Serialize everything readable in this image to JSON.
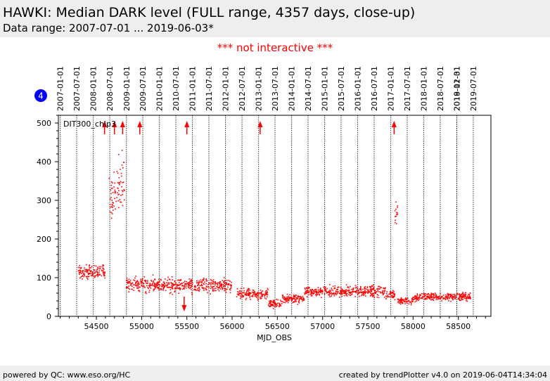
{
  "header": {
    "title": "HAWKI: Median DARK level (FULL range, 4357 days, close-up)",
    "subtitle": "Data range: 2007-07-01 ... 2019-06-03*"
  },
  "notice": "*** not interactive ***",
  "badge": "4",
  "footer": {
    "left": "powered by QC: www.eso.org/HC",
    "right": "created by trendPlotter v4.0 on 2019-06-04T14:34:04"
  },
  "colors": {
    "points": "#ff0000",
    "badge": "#0000ff",
    "header_bg": "#eeeeee"
  },
  "chart_data": {
    "type": "scatter",
    "xlabel": "MJD_OBS",
    "ylabel": "",
    "xlim": [
      54080,
      58860
    ],
    "ylim": [
      0,
      520
    ],
    "legend": "DIT300_chip3",
    "x_ticks": [
      54500,
      55000,
      55500,
      56000,
      56500,
      57000,
      57500,
      58000,
      58500
    ],
    "y_ticks": [
      0,
      100,
      200,
      300,
      400,
      500
    ],
    "date_markers": [
      {
        "label": "2007-01-01",
        "mjd": 54101
      },
      {
        "label": "2007-07-01",
        "mjd": 54282
      },
      {
        "label": "2008-01-01",
        "mjd": 54466
      },
      {
        "label": "2008-07-01",
        "mjd": 54648
      },
      {
        "label": "2009-01-01",
        "mjd": 54832
      },
      {
        "label": "2009-07-01",
        "mjd": 55013
      },
      {
        "label": "2010-01-01",
        "mjd": 55197
      },
      {
        "label": "2010-07-01",
        "mjd": 55378
      },
      {
        "label": "2011-01-01",
        "mjd": 55562
      },
      {
        "label": "2011-07-01",
        "mjd": 55743
      },
      {
        "label": "2012-01-01",
        "mjd": 55927
      },
      {
        "label": "2012-07-01",
        "mjd": 56109
      },
      {
        "label": "2013-01-01",
        "mjd": 56293
      },
      {
        "label": "2013-07-01",
        "mjd": 56474
      },
      {
        "label": "2014-01-01",
        "mjd": 56658
      },
      {
        "label": "2014-07-01",
        "mjd": 56839
      },
      {
        "label": "2015-01-01",
        "mjd": 57023
      },
      {
        "label": "2015-07-01",
        "mjd": 57204
      },
      {
        "label": "2016-01-01",
        "mjd": 57388
      },
      {
        "label": "2016-07-01",
        "mjd": 57570
      },
      {
        "label": "2017-01-01",
        "mjd": 57754
      },
      {
        "label": "2017-07-01",
        "mjd": 57935
      },
      {
        "label": "2018-01-01",
        "mjd": 58119
      },
      {
        "label": "2018-07-01",
        "mjd": 58300
      },
      {
        "label": "2018-12-31",
        "mjd": 58483
      },
      {
        "label": "2019-01-01",
        "mjd": 58484
      },
      {
        "label": "2019-07-01",
        "mjd": 58665
      }
    ],
    "outlier_arrows": [
      {
        "x": 54590,
        "direction": "up"
      },
      {
        "x": 54700,
        "direction": "up"
      },
      {
        "x": 54790,
        "direction": "up"
      },
      {
        "x": 54980,
        "direction": "up"
      },
      {
        "x": 55500,
        "direction": "up"
      },
      {
        "x": 56310,
        "direction": "up"
      },
      {
        "x": 57790,
        "direction": "up"
      },
      {
        "x": 55470,
        "direction": "down"
      }
    ],
    "series": [
      {
        "name": "DIT300_chip3",
        "segments": [
          {
            "x_start": 54300,
            "x_end": 54600,
            "y_mean": 115,
            "spread": 15
          },
          {
            "x_start": 54640,
            "x_end": 54720,
            "y_mean": 310,
            "spread": 55
          },
          {
            "x_start": 54720,
            "x_end": 54810,
            "y_mean": 340,
            "spread": 60
          },
          {
            "x_start": 54830,
            "x_end": 55200,
            "y_mean": 82,
            "spread": 15
          },
          {
            "x_start": 55200,
            "x_end": 55700,
            "y_mean": 80,
            "spread": 15
          },
          {
            "x_start": 55700,
            "x_end": 56000,
            "y_mean": 78,
            "spread": 14
          },
          {
            "x_start": 56050,
            "x_end": 56400,
            "y_mean": 58,
            "spread": 10
          },
          {
            "x_start": 56400,
            "x_end": 56550,
            "y_mean": 32,
            "spread": 8
          },
          {
            "x_start": 56550,
            "x_end": 56800,
            "y_mean": 45,
            "spread": 8
          },
          {
            "x_start": 56800,
            "x_end": 57250,
            "y_mean": 64,
            "spread": 10
          },
          {
            "x_start": 57250,
            "x_end": 57700,
            "y_mean": 65,
            "spread": 12
          },
          {
            "x_start": 57700,
            "x_end": 57800,
            "y_mean": 55,
            "spread": 8
          },
          {
            "x_start": 57800,
            "x_end": 57830,
            "y_mean": 260,
            "spread": 40
          },
          {
            "x_start": 57830,
            "x_end": 58000,
            "y_mean": 40,
            "spread": 7
          },
          {
            "x_start": 58000,
            "x_end": 58650,
            "y_mean": 50,
            "spread": 8
          }
        ]
      }
    ]
  }
}
